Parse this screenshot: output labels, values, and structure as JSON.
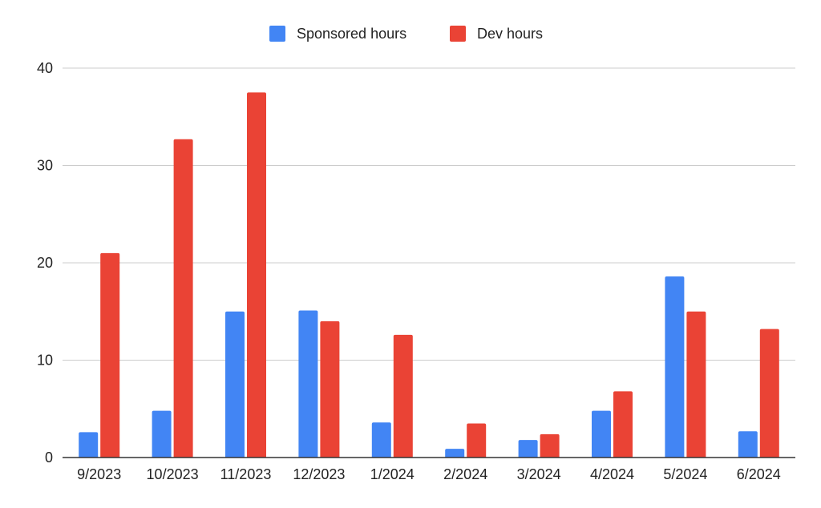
{
  "chart_data": {
    "type": "bar",
    "title": "",
    "xlabel": "",
    "ylabel": "",
    "categories": [
      "9/2023",
      "10/2023",
      "11/2023",
      "12/2023",
      "1/2024",
      "2/2024",
      "3/2024",
      "4/2024",
      "5/2024",
      "6/2024"
    ],
    "series": [
      {
        "name": "Sponsored hours",
        "color": "#4285f4",
        "values": [
          2.6,
          4.8,
          15.0,
          15.1,
          3.6,
          0.9,
          1.8,
          4.8,
          18.6,
          2.7
        ]
      },
      {
        "name": "Dev hours",
        "color": "#ea4335",
        "values": [
          21.0,
          32.7,
          37.5,
          14.0,
          12.6,
          3.5,
          2.4,
          6.8,
          15.0,
          13.2
        ]
      }
    ],
    "ylim": [
      0,
      40
    ],
    "yticks": [
      "0",
      "10",
      "20",
      "30",
      "40"
    ],
    "grid": true,
    "legend_position": "top-center"
  }
}
